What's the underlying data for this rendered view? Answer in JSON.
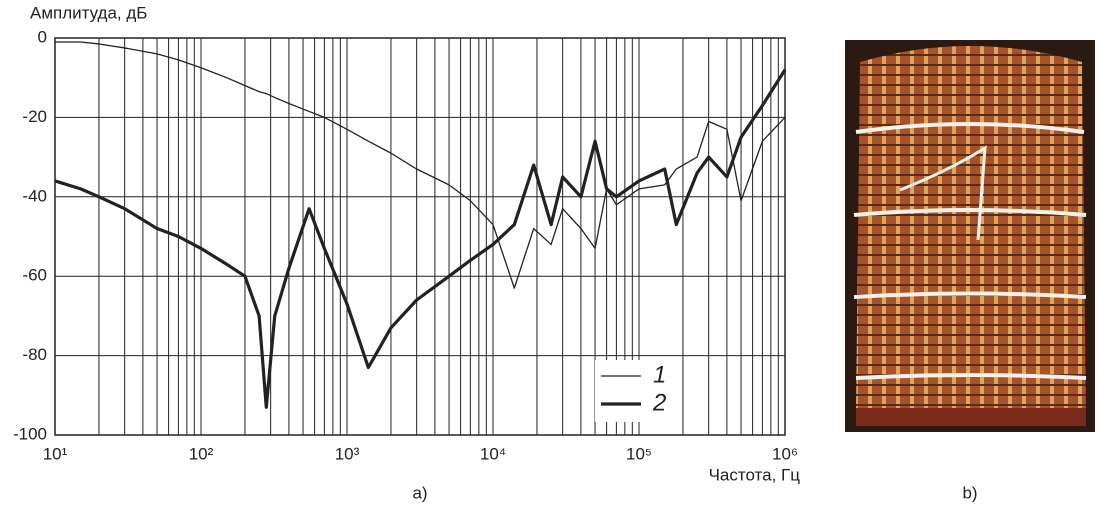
{
  "chart_data": {
    "type": "line",
    "y_label": "Амплитуда, дБ",
    "x_label": "Частота, Гц",
    "caption": "a)",
    "log_x": true,
    "grid": true,
    "legend": "lower right",
    "xlim": [
      10,
      1000000
    ],
    "ylim": [
      -100,
      0
    ],
    "xticks": [
      {
        "value": 10,
        "label": "10¹"
      },
      {
        "value": 100,
        "label": "10²"
      },
      {
        "value": 1000,
        "label": "10³"
      },
      {
        "value": 10000,
        "label": "10⁴"
      },
      {
        "value": 100000,
        "label": "10⁵"
      },
      {
        "value": 1000000,
        "label": "10⁶"
      }
    ],
    "yticks": [
      0,
      -20,
      -40,
      -60,
      -80,
      -100
    ],
    "x": [
      10,
      15,
      20,
      30,
      50,
      70,
      100,
      150,
      200,
      250,
      280,
      320,
      400,
      550,
      700,
      1000,
      1400,
      2000,
      3000,
      5000,
      7000,
      10000,
      14000,
      19000,
      25000,
      30000,
      40000,
      50000,
      60000,
      70000,
      100000,
      150000,
      180000,
      250000,
      300000,
      400000,
      500000,
      700000,
      1000000
    ],
    "series": [
      {
        "name": "1",
        "color": "#222222",
        "values": [
          -1,
          -1,
          -1.5,
          -2.5,
          -4,
          -5.5,
          -7.5,
          -10,
          -12,
          -13.5,
          -14,
          -15,
          -16.5,
          -18.5,
          -20,
          -23,
          -26,
          -29,
          -33,
          -37,
          -41,
          -47,
          -63,
          -48,
          -52,
          -43,
          -48,
          -53,
          -38,
          -42,
          -38,
          -37,
          -33,
          -30,
          -21,
          -23,
          -41,
          -26,
          -20
        ]
      },
      {
        "name": "2",
        "color": "#222222",
        "values": [
          -36,
          -38,
          -40,
          -43,
          -48,
          -50,
          -53,
          -57,
          -60,
          -70,
          -93,
          -70,
          -58,
          -43,
          -53,
          -67,
          -83,
          -73,
          -66,
          -60,
          -56,
          -52,
          -47,
          -32,
          -47,
          -35,
          -40,
          -26,
          -38,
          -40,
          -36,
          -33,
          -47,
          -34,
          -30,
          -35,
          -25,
          -17,
          -8
        ]
      }
    ]
  },
  "photo_caption": "b)"
}
